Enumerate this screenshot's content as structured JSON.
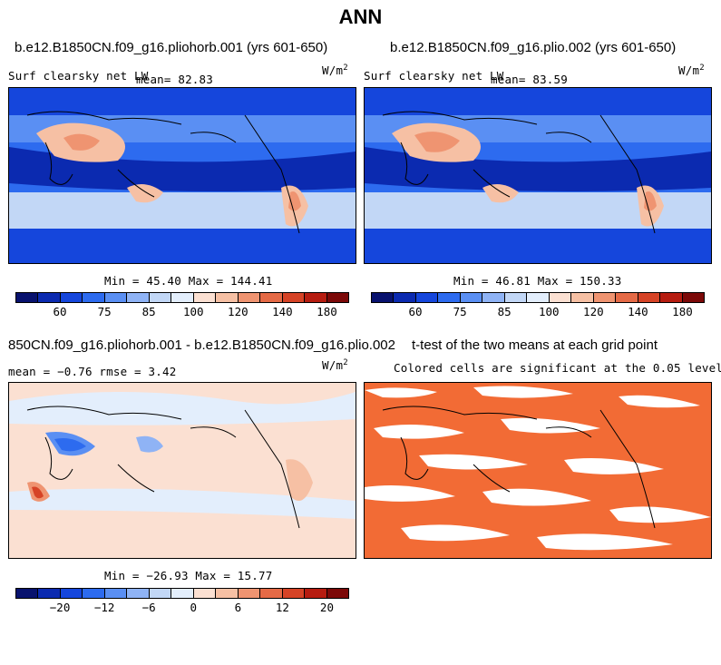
{
  "title": "ANN",
  "panels": {
    "p1": {
      "title": "b.e12.B1850CN.f09_g16.pliohorb.001 (yrs 601-650)",
      "variable": "Surf clearsky net LW",
      "stat": "mean=  82.83",
      "units_base": "W/m",
      "units_exp": "2",
      "minmax": "Min =  45.40 Max = 144.41"
    },
    "p2": {
      "title": "b.e12.B1850CN.f09_g16.plio.002 (yrs 601-650)",
      "variable": "Surf clearsky net LW",
      "stat": "mean=  83.59",
      "units_base": "W/m",
      "units_exp": "2",
      "minmax": "Min =  46.81 Max = 150.33"
    },
    "p3": {
      "title": "850CN.f09_g16.pliohorb.001 - b.e12.B1850CN.f09_g16.plio.002",
      "stat": "mean =  −0.76      rmse =    3.42",
      "units_base": "W/m",
      "units_exp": "2",
      "minmax": "Min = −26.93 Max =  15.77"
    },
    "p4": {
      "title": "t-test of the two means at each grid point",
      "subtitle": "Colored cells are significant at the 0.05 level"
    }
  },
  "colorbars": {
    "absolute": {
      "colors": [
        "#08126e",
        "#0b2ab0",
        "#1546dc",
        "#2d6bef",
        "#5a8ff3",
        "#8fb3f5",
        "#c2d7f6",
        "#e3eefc",
        "#fbe0d2",
        "#f6c0a4",
        "#ef9471",
        "#e56a46",
        "#d64326",
        "#b61c10",
        "#7c0908"
      ],
      "labels": [
        "60",
        "75",
        "85",
        "100",
        "120",
        "140",
        "180"
      ]
    },
    "difference": {
      "colors": [
        "#08126e",
        "#0b2ab0",
        "#1546dc",
        "#2d6bef",
        "#5a8ff3",
        "#8fb3f5",
        "#c2d7f6",
        "#e3eefc",
        "#fbe0d2",
        "#f6c0a4",
        "#ef9471",
        "#e56a46",
        "#d64326",
        "#b61c10",
        "#7c0908"
      ],
      "labels": [
        "−20",
        "−12",
        "−6",
        "0",
        "6",
        "12",
        "20"
      ]
    }
  },
  "colors": {
    "ocean_strong": "#1546dc",
    "ocean_mid": "#5a8ff3",
    "ocean_light": "#c2d7f6",
    "land_warm": "#f6c0a4",
    "land_hot": "#ef9471",
    "diff_base": "#fbe0d2",
    "diff_cool": "#8fb3f5",
    "significant": "#f26b35"
  }
}
